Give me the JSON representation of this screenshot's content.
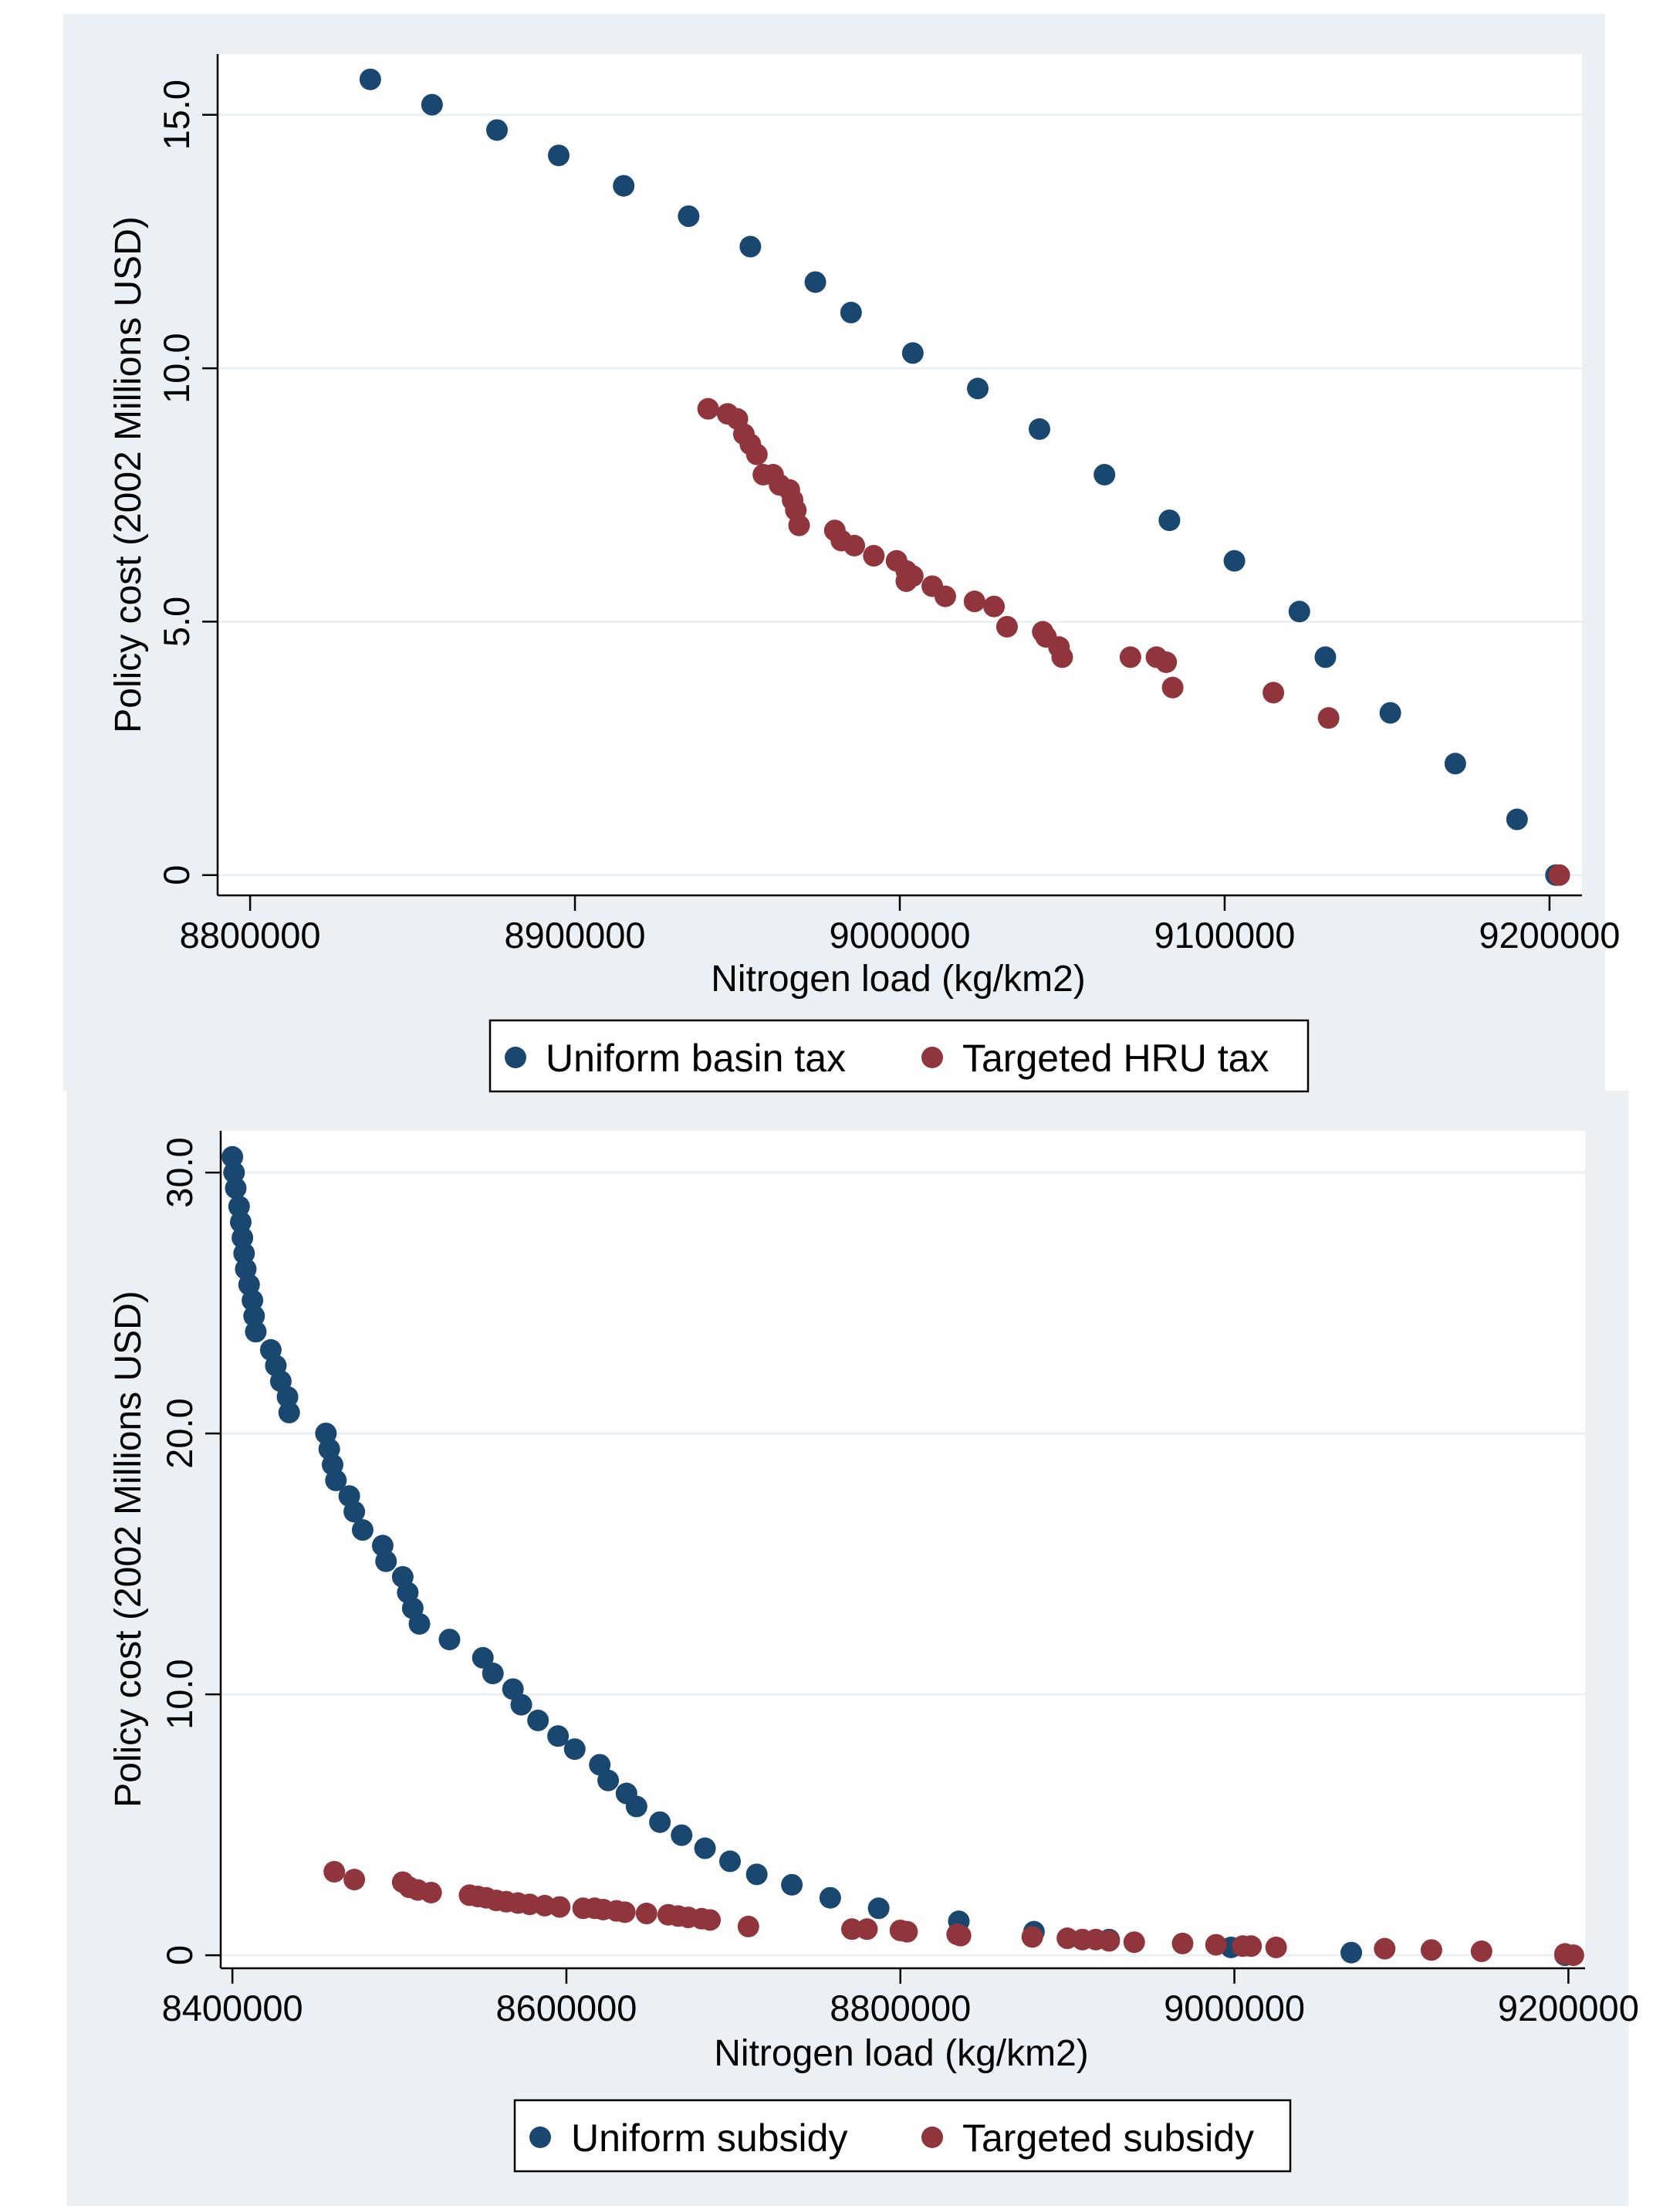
{
  "chart_data": [
    {
      "type": "scatter",
      "xlabel": "Nitrogen load (kg/km2)",
      "ylabel": "Policy cost (2002 Millions USD)",
      "xlim": [
        8790000,
        9210000
      ],
      "ylim": [
        -0.4,
        16.2
      ],
      "xticks": [
        8800000,
        8900000,
        9000000,
        9100000,
        9200000
      ],
      "xtick_labels": [
        "8800000",
        "8900000",
        "9000000",
        "9100000",
        "9200000"
      ],
      "yticks": [
        0,
        5,
        10,
        15
      ],
      "ytick_labels": [
        "0",
        "5.0",
        "10.0",
        "15.0"
      ],
      "grid": true,
      "legend_position": "bottom",
      "series": [
        {
          "name": "Uniform basin tax",
          "color": "#1a476f",
          "points": [
            [
              8837000,
              15.7
            ],
            [
              8856000,
              15.2
            ],
            [
              8876000,
              14.7
            ],
            [
              8895000,
              14.2
            ],
            [
              8915000,
              13.6
            ],
            [
              8935000,
              13.0
            ],
            [
              8954000,
              12.4
            ],
            [
              8974000,
              11.7
            ],
            [
              8985000,
              11.1
            ],
            [
              9004000,
              10.3
            ],
            [
              9024000,
              9.6
            ],
            [
              9043000,
              8.8
            ],
            [
              9063000,
              7.9
            ],
            [
              9083000,
              7.0
            ],
            [
              9103000,
              6.2
            ],
            [
              9123000,
              5.2
            ],
            [
              9131000,
              4.3
            ],
            [
              9151000,
              3.2
            ],
            [
              9171000,
              2.2
            ],
            [
              9190000,
              1.1
            ],
            [
              9202000,
              0.0
            ]
          ]
        },
        {
          "name": "Targeted HRU tax",
          "color": "#90353b",
          "points": [
            [
              8941000,
              9.2
            ],
            [
              8947000,
              9.1
            ],
            [
              8950000,
              9.0
            ],
            [
              8952000,
              8.7
            ],
            [
              8954000,
              8.5
            ],
            [
              8956000,
              8.3
            ],
            [
              8958000,
              7.9
            ],
            [
              8961000,
              7.9
            ],
            [
              8963000,
              7.7
            ],
            [
              8966000,
              7.6
            ],
            [
              8967000,
              7.4
            ],
            [
              8968000,
              7.2
            ],
            [
              8969000,
              6.9
            ],
            [
              8980000,
              6.8
            ],
            [
              8982000,
              6.6
            ],
            [
              8986000,
              6.5
            ],
            [
              8992000,
              6.3
            ],
            [
              8999000,
              6.2
            ],
            [
              9002000,
              6.0
            ],
            [
              9002000,
              5.8
            ],
            [
              9004000,
              5.9
            ],
            [
              9010000,
              5.7
            ],
            [
              9014000,
              5.5
            ],
            [
              9023000,
              5.4
            ],
            [
              9029000,
              5.3
            ],
            [
              9033000,
              4.9
            ],
            [
              9044000,
              4.8
            ],
            [
              9045000,
              4.7
            ],
            [
              9049000,
              4.5
            ],
            [
              9050000,
              4.3
            ],
            [
              9071000,
              4.3
            ],
            [
              9079000,
              4.3
            ],
            [
              9082000,
              4.2
            ],
            [
              9084000,
              3.7
            ],
            [
              9115000,
              3.6
            ],
            [
              9132000,
              3.1
            ],
            [
              9203000,
              0.0
            ]
          ]
        }
      ]
    },
    {
      "type": "scatter",
      "xlabel": "Nitrogen load (kg/km2)",
      "ylabel": "Policy cost (2002 Millions USD)",
      "xlim": [
        8393000,
        9210000
      ],
      "ylim": [
        -0.5,
        31.6
      ],
      "xticks": [
        8400000,
        8600000,
        8800000,
        9000000,
        9200000
      ],
      "xtick_labels": [
        "8400000",
        "8600000",
        "8800000",
        "9000000",
        "9200000"
      ],
      "yticks": [
        0,
        10,
        20,
        30
      ],
      "ytick_labels": [
        "0",
        "10.0",
        "20.0",
        "30.0"
      ],
      "grid": true,
      "legend_position": "bottom",
      "series": [
        {
          "name": "Uniform subsidy",
          "color": "#1a476f",
          "points": [
            [
              8400000,
              30.6
            ],
            [
              8401000,
              30.0
            ],
            [
              8402000,
              29.4
            ],
            [
              8404000,
              28.7
            ],
            [
              8405000,
              28.1
            ],
            [
              8406000,
              27.5
            ],
            [
              8407000,
              26.9
            ],
            [
              8408000,
              26.3
            ],
            [
              8410000,
              25.7
            ],
            [
              8412000,
              25.1
            ],
            [
              8413000,
              24.5
            ],
            [
              8414000,
              23.9
            ],
            [
              8423000,
              23.2
            ],
            [
              8426000,
              22.6
            ],
            [
              8429000,
              22.0
            ],
            [
              8433000,
              21.4
            ],
            [
              8434000,
              20.8
            ],
            [
              8456000,
              20.0
            ],
            [
              8458000,
              19.4
            ],
            [
              8460000,
              18.8
            ],
            [
              8462000,
              18.2
            ],
            [
              8470000,
              17.6
            ],
            [
              8473000,
              17.0
            ],
            [
              8478000,
              16.3
            ],
            [
              8490000,
              15.7
            ],
            [
              8492000,
              15.1
            ],
            [
              8502000,
              14.5
            ],
            [
              8505000,
              13.9
            ],
            [
              8508000,
              13.3
            ],
            [
              8512000,
              12.7
            ],
            [
              8530000,
              12.1
            ],
            [
              8550000,
              11.4
            ],
            [
              8556000,
              10.8
            ],
            [
              8568000,
              10.2
            ],
            [
              8573000,
              9.6
            ],
            [
              8583000,
              9.0
            ],
            [
              8595000,
              8.4
            ],
            [
              8605000,
              7.9
            ],
            [
              8620000,
              7.3
            ],
            [
              8625000,
              6.7
            ],
            [
              8636000,
              6.2
            ],
            [
              8642000,
              5.7
            ],
            [
              8656000,
              5.1
            ],
            [
              8669000,
              4.6
            ],
            [
              8683000,
              4.1
            ],
            [
              8698000,
              3.6
            ],
            [
              8714000,
              3.1
            ],
            [
              8735000,
              2.7
            ],
            [
              8758000,
              2.2
            ],
            [
              8787000,
              1.8
            ],
            [
              8835000,
              1.3
            ],
            [
              8880000,
              0.9
            ],
            [
              8925000,
              0.6
            ],
            [
              8998000,
              0.3
            ],
            [
              9070000,
              0.1
            ],
            [
              9198000,
              0.0
            ]
          ]
        },
        {
          "name": "Targeted subsidy",
          "color": "#90353b",
          "points": [
            [
              8461000,
              3.2
            ],
            [
              8473000,
              2.9
            ],
            [
              8502000,
              2.8
            ],
            [
              8506000,
              2.6
            ],
            [
              8511000,
              2.5
            ],
            [
              8519000,
              2.4
            ],
            [
              8542000,
              2.3
            ],
            [
              8547000,
              2.25
            ],
            [
              8552000,
              2.2
            ],
            [
              8558000,
              2.1
            ],
            [
              8564000,
              2.05
            ],
            [
              8571000,
              2.0
            ],
            [
              8578000,
              1.95
            ],
            [
              8587000,
              1.9
            ],
            [
              8596000,
              1.85
            ],
            [
              8610000,
              1.8
            ],
            [
              8617000,
              1.8
            ],
            [
              8622000,
              1.75
            ],
            [
              8630000,
              1.7
            ],
            [
              8635000,
              1.65
            ],
            [
              8648000,
              1.6
            ],
            [
              8661000,
              1.55
            ],
            [
              8667000,
              1.5
            ],
            [
              8673000,
              1.45
            ],
            [
              8681000,
              1.4
            ],
            [
              8686000,
              1.35
            ],
            [
              8709000,
              1.1
            ],
            [
              8771000,
              1.0
            ],
            [
              8780000,
              1.0
            ],
            [
              8800000,
              0.95
            ],
            [
              8804000,
              0.9
            ],
            [
              8834000,
              0.8
            ],
            [
              8836000,
              0.75
            ],
            [
              8879000,
              0.7
            ],
            [
              8900000,
              0.65
            ],
            [
              8909000,
              0.6
            ],
            [
              8917000,
              0.6
            ],
            [
              8925000,
              0.55
            ],
            [
              8940000,
              0.5
            ],
            [
              8969000,
              0.45
            ],
            [
              8989000,
              0.4
            ],
            [
              9005000,
              0.35
            ],
            [
              9010000,
              0.35
            ],
            [
              9025000,
              0.3
            ],
            [
              9090000,
              0.25
            ],
            [
              9118000,
              0.2
            ],
            [
              9148000,
              0.15
            ],
            [
              9198000,
              0.05
            ],
            [
              9203000,
              0.0
            ]
          ]
        }
      ]
    }
  ]
}
